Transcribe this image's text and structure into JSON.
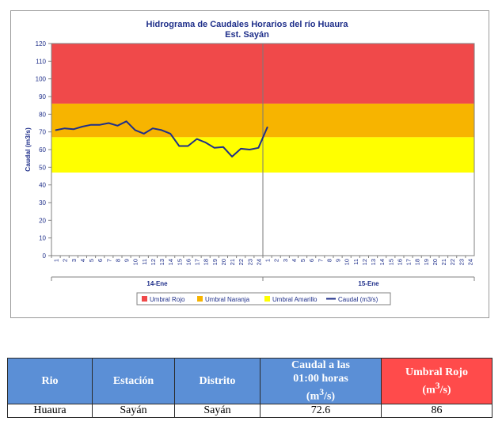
{
  "chart_data": {
    "type": "line",
    "title": "Hidrograma de Caudales Horarios del río Huaura",
    "subtitle": "Est. Sayán",
    "ylabel": "Caudal  (m3/s)",
    "xlabel": "",
    "ylim": [
      0,
      120
    ],
    "yticks": [
      0,
      10,
      20,
      30,
      40,
      50,
      60,
      70,
      80,
      90,
      100,
      110,
      120
    ],
    "x_tick_labels": [
      "1",
      "2",
      "3",
      "4",
      "5",
      "6",
      "7",
      "8",
      "9",
      "10",
      "11",
      "12",
      "13",
      "14",
      "15",
      "16",
      "17",
      "18",
      "19",
      "20",
      "21",
      "22",
      "23",
      "24",
      "1",
      "2",
      "3",
      "4",
      "5",
      "6",
      "7",
      "8",
      "9",
      "10",
      "11",
      "12",
      "13",
      "14",
      "15",
      "16",
      "17",
      "18",
      "19",
      "20",
      "21",
      "22",
      "23",
      "24"
    ],
    "day_groups": [
      {
        "label": "14-Ene",
        "start": 0,
        "end": 24
      },
      {
        "label": "15-Ene",
        "start": 24,
        "end": 48
      }
    ],
    "thresholds": [
      {
        "name": "Umbral Rojo",
        "from": 86,
        "to": 120,
        "color": "#f0494a"
      },
      {
        "name": "Umbral Naranja",
        "from": 67,
        "to": 86,
        "color": "#f7b400"
      },
      {
        "name": "Umbral Amarillo",
        "from": 47,
        "to": 67,
        "color": "#ffff00"
      }
    ],
    "series": [
      {
        "name": "Caudal (m3/s)",
        "color": "#1f2f8a",
        "values": [
          71,
          72,
          71.5,
          73,
          74,
          74,
          75,
          73.5,
          76,
          71,
          69,
          72,
          71,
          69,
          62,
          62,
          66,
          64,
          61,
          61.5,
          56,
          60.5,
          60,
          61,
          72.6
        ]
      }
    ],
    "legend": {
      "position": "bottom",
      "entries": [
        {
          "label": "Umbral Rojo",
          "color": "#f0494a",
          "kind": "box"
        },
        {
          "label": "Umbral Naranja",
          "color": "#f7b400",
          "kind": "box"
        },
        {
          "label": "Umbral Amarillo",
          "color": "#ffff00",
          "kind": "box"
        },
        {
          "label": "Caudal (m3/s)",
          "color": "#1f2f8a",
          "kind": "line"
        }
      ]
    }
  },
  "table": {
    "headers": {
      "rio": "Rio",
      "estacion": "Estación",
      "distrito": "Distrito",
      "caudal_line1": "Caudal a las",
      "caudal_line2": "01:00 horas",
      "caudal_unit": "m",
      "caudal_sup": "3",
      "caudal_unit_end": "/s",
      "umbral_line1": "Umbral Rojo",
      "umbral_unit": "m",
      "umbral_sup": "3",
      "umbral_unit_end": "/s"
    },
    "row": {
      "rio": "Huaura",
      "estacion": "Sayán",
      "distrito": "Sayán",
      "caudal": "72.6",
      "umbral": "86"
    }
  }
}
